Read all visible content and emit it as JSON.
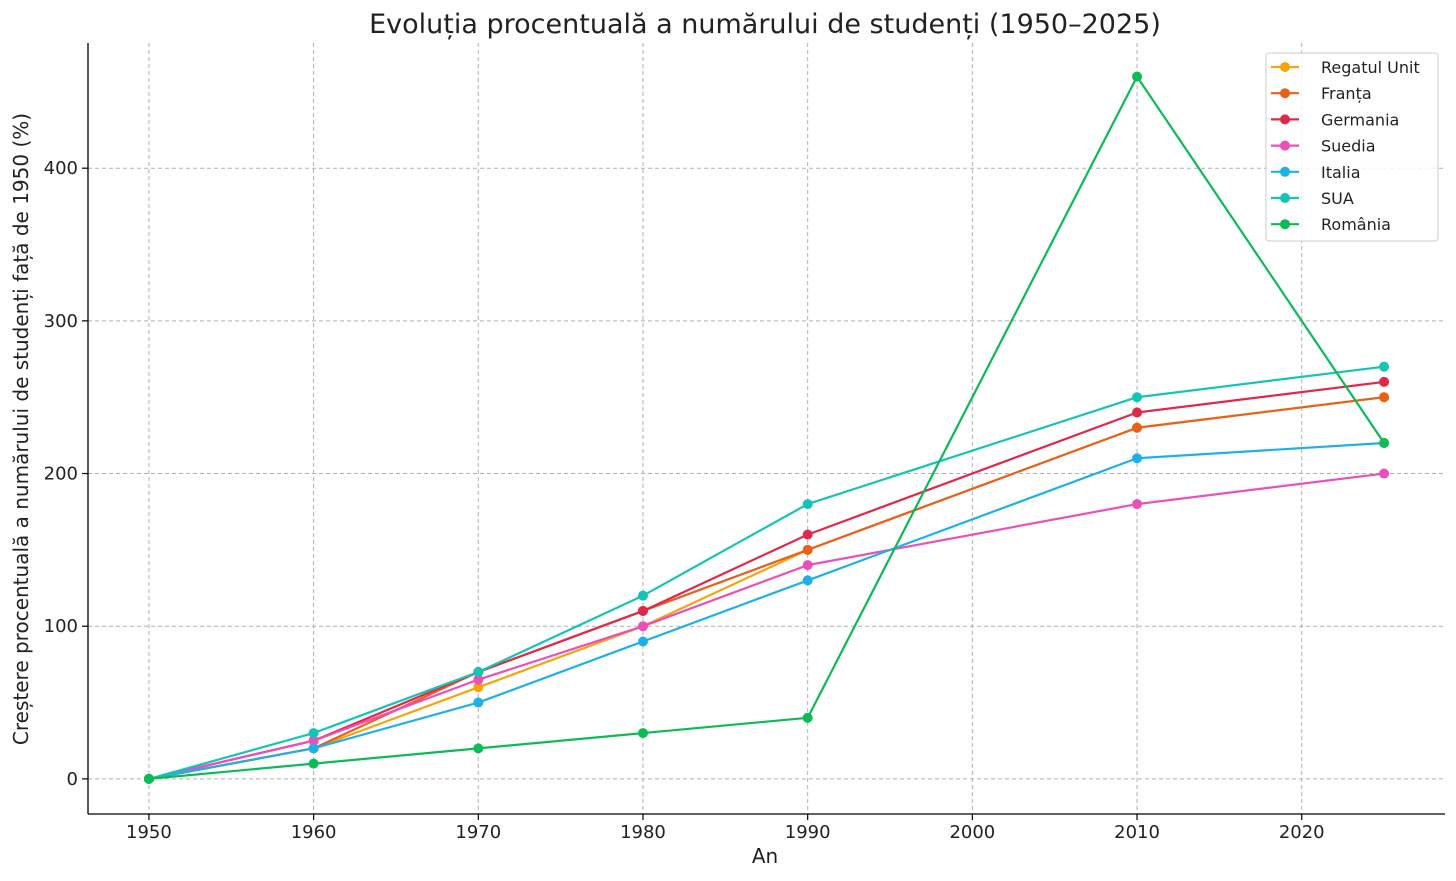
{
  "chart_data": {
    "type": "line",
    "title": "Evoluția procentuală a numărului de studenți (1950–2025)",
    "xlabel": "An",
    "ylabel": "Creștere procentuală a numărului de studenți față de 1950 (%)",
    "x": [
      1950,
      1960,
      1970,
      1980,
      1990,
      2010,
      2025
    ],
    "xlim": [
      1946.3,
      2028.7
    ],
    "ylim": [
      -23,
      482
    ],
    "xticks": [
      1950,
      1960,
      1970,
      1980,
      1990,
      2000,
      2010,
      2020
    ],
    "xtick_labels": [
      "1950",
      "1960",
      "1970",
      "1980",
      "1990",
      "2000",
      "2010",
      "2020"
    ],
    "yticks": [
      0,
      100,
      200,
      300,
      400
    ],
    "ytick_labels": [
      "0",
      "100",
      "200",
      "300",
      "400"
    ],
    "grid": true,
    "legend_position": "top-right",
    "series": [
      {
        "name": "Regatul Unit",
        "color": "#f5a40c",
        "values": [
          0,
          20,
          60,
          100,
          150,
          230,
          250
        ]
      },
      {
        "name": "Franța",
        "color": "#e8601c",
        "values": [
          0,
          20,
          70,
          110,
          150,
          230,
          250
        ]
      },
      {
        "name": "Germania",
        "color": "#e0284a",
        "values": [
          0,
          25,
          70,
          110,
          160,
          240,
          260
        ]
      },
      {
        "name": "Suedia",
        "color": "#ec4fb9",
        "values": [
          0,
          25,
          65,
          100,
          140,
          180,
          200
        ]
      },
      {
        "name": "Italia",
        "color": "#1fb0ea",
        "values": [
          0,
          20,
          50,
          90,
          130,
          210,
          220
        ]
      },
      {
        "name": "SUA",
        "color": "#14c4b4",
        "values": [
          0,
          30,
          70,
          120,
          180,
          250,
          270
        ]
      },
      {
        "name": "România",
        "color": "#0bbb55",
        "values": [
          0,
          10,
          20,
          30,
          40,
          460,
          220
        ]
      }
    ]
  }
}
